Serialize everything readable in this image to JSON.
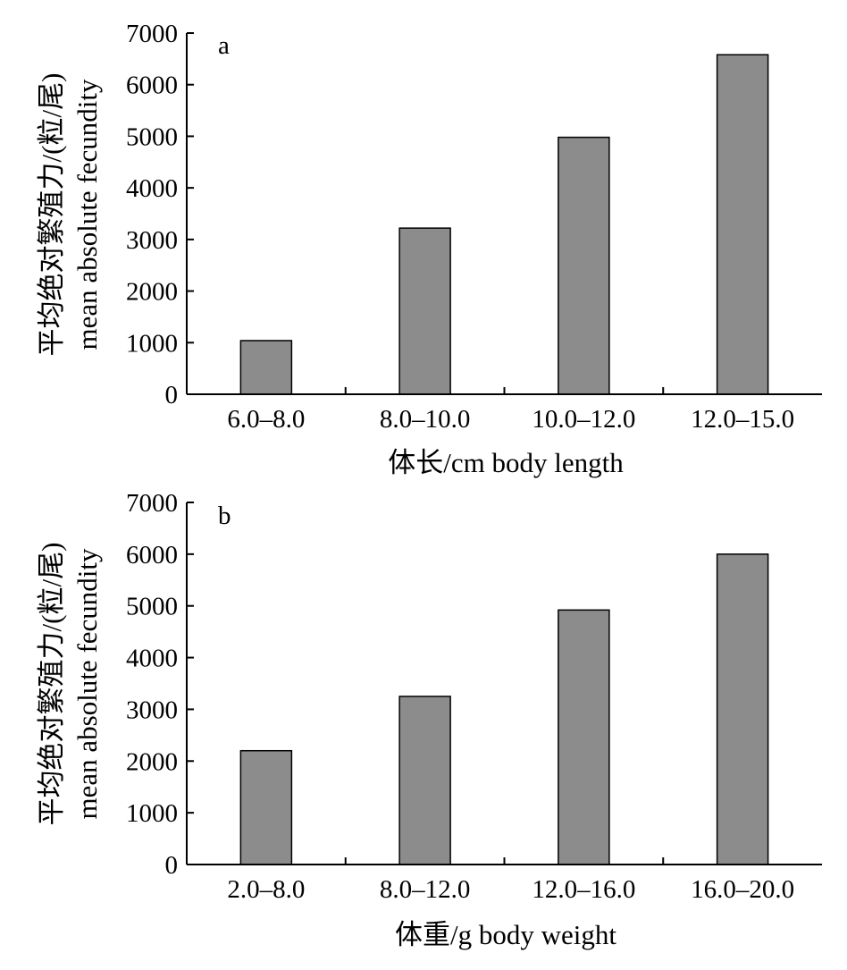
{
  "chart_data": [
    {
      "type": "bar",
      "panel_label": "a",
      "categories": [
        "6.0–8.0",
        "8.0–10.0",
        "10.0–12.0",
        "12.0–15.0"
      ],
      "values": [
        1040,
        3220,
        4980,
        6580
      ],
      "xlabel": "体长/cm body length",
      "ylabel": [
        "平均绝对繁殖力/(粒/尾)",
        "mean absolute fecundity"
      ],
      "ylim": [
        0,
        7000
      ],
      "yticks": [
        0,
        1000,
        2000,
        3000,
        4000,
        5000,
        6000,
        7000
      ],
      "bar_color": "#8c8c8c",
      "grid": false
    },
    {
      "type": "bar",
      "panel_label": "b",
      "categories": [
        "2.0–8.0",
        "8.0–12.0",
        "12.0–16.0",
        "16.0–20.0"
      ],
      "values": [
        2200,
        3250,
        4920,
        6000
      ],
      "xlabel": "体重/g body weight",
      "ylabel": [
        "平均绝对繁殖力/(粒/尾)",
        "mean absolute fecundity"
      ],
      "ylim": [
        0,
        7000
      ],
      "yticks": [
        0,
        1000,
        2000,
        3000,
        4000,
        5000,
        6000,
        7000
      ],
      "bar_color": "#8c8c8c",
      "grid": false
    }
  ]
}
